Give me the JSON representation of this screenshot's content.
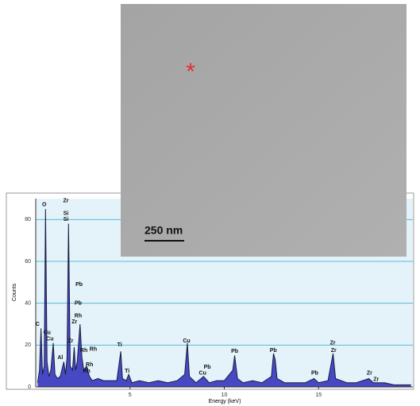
{
  "chart_data": {
    "type": "spectrum",
    "x_label": "Energy (keV)",
    "y_label": "Counts",
    "xlim": [
      0,
      20
    ],
    "ylim": [
      0,
      90
    ],
    "xticks": [
      5,
      10,
      15
    ],
    "yticks": [
      0,
      20,
      40,
      60,
      80
    ],
    "grid": true,
    "line_color": "#1a1a40",
    "fill_color": "#2a2ab8",
    "x": [
      0.1,
      0.2,
      0.28,
      0.36,
      0.45,
      0.52,
      0.6,
      0.7,
      0.8,
      0.93,
      1.02,
      1.15,
      1.3,
      1.49,
      1.58,
      1.66,
      1.74,
      1.83,
      1.95,
      2.04,
      2.12,
      2.2,
      2.35,
      2.45,
      2.55,
      2.7,
      2.85,
      3.0,
      3.3,
      3.6,
      4.0,
      4.3,
      4.51,
      4.6,
      4.8,
      4.93,
      5.1,
      5.5,
      6.0,
      6.5,
      7.0,
      7.5,
      7.9,
      8.04,
      8.15,
      8.5,
      8.9,
      9.2,
      9.6,
      10.0,
      10.45,
      10.55,
      10.7,
      11.0,
      11.5,
      12.0,
      12.5,
      12.61,
      12.7,
      12.8,
      13.2,
      13.8,
      14.3,
      14.76,
      15.0,
      15.5,
      15.77,
      15.9,
      16.5,
      17.0,
      17.67,
      17.9,
      18.5,
      19.0,
      19.9
    ],
    "values": [
      2,
      8,
      28,
      6,
      10,
      85,
      12,
      5,
      8,
      21,
      6,
      4,
      5,
      12,
      6,
      14,
      78,
      10,
      8,
      19,
      8,
      12,
      30,
      14,
      8,
      10,
      5,
      3,
      4,
      3,
      3,
      3,
      17,
      4,
      3,
      6,
      2,
      3,
      2,
      3,
      2,
      3,
      6,
      21,
      5,
      2,
      5,
      2,
      3,
      3,
      8,
      15,
      4,
      2,
      3,
      2,
      5,
      16,
      13,
      4,
      2,
      2,
      2,
      4,
      2,
      3,
      16,
      4,
      2,
      2,
      4,
      2,
      2,
      1,
      1
    ],
    "annotations": [
      {
        "text": "O",
        "x": 0.45,
        "y": 87
      },
      {
        "text": "Zr",
        "x": 1.6,
        "y": 89
      },
      {
        "text": "Si",
        "x": 1.6,
        "y": 83
      },
      {
        "text": "Si",
        "x": 1.6,
        "y": 80
      },
      {
        "text": "C",
        "x": 0.1,
        "y": 30
      },
      {
        "text": "Cu",
        "x": 0.6,
        "y": 26
      },
      {
        "text": "Cu",
        "x": 0.75,
        "y": 23
      },
      {
        "text": "Al",
        "x": 1.3,
        "y": 14
      },
      {
        "text": "Zr",
        "x": 1.85,
        "y": 22
      },
      {
        "text": "Pb",
        "x": 2.3,
        "y": 49
      },
      {
        "text": "Pb",
        "x": 2.25,
        "y": 40
      },
      {
        "text": "Rh",
        "x": 2.25,
        "y": 34
      },
      {
        "text": "Zr",
        "x": 2.05,
        "y": 31
      },
      {
        "text": "Rh",
        "x": 2.55,
        "y": 17.5
      },
      {
        "text": "Rh",
        "x": 3.05,
        "y": 18
      },
      {
        "text": "Rh",
        "x": 2.85,
        "y": 10.5
      },
      {
        "text": "Rh",
        "x": 2.7,
        "y": 7.5
      },
      {
        "text": "Ti",
        "x": 4.45,
        "y": 20
      },
      {
        "text": "Ti",
        "x": 4.85,
        "y": 7.5
      },
      {
        "text": "Cu",
        "x": 8.0,
        "y": 22
      },
      {
        "text": "Pb",
        "x": 9.1,
        "y": 9.5
      },
      {
        "text": "Cu",
        "x": 8.85,
        "y": 6.5
      },
      {
        "text": "Pb",
        "x": 10.55,
        "y": 17
      },
      {
        "text": "Pb",
        "x": 12.6,
        "y": 17.5
      },
      {
        "text": "Pb",
        "x": 14.8,
        "y": 6.5
      },
      {
        "text": "Zr",
        "x": 15.75,
        "y": 21
      },
      {
        "text": "Zr",
        "x": 15.8,
        "y": 17.5
      },
      {
        "text": "Zr",
        "x": 17.7,
        "y": 6.5
      },
      {
        "text": "Zr",
        "x": 18.05,
        "y": 3.5
      }
    ]
  },
  "image": {
    "marker": "*",
    "scale_label": "250 nm"
  }
}
